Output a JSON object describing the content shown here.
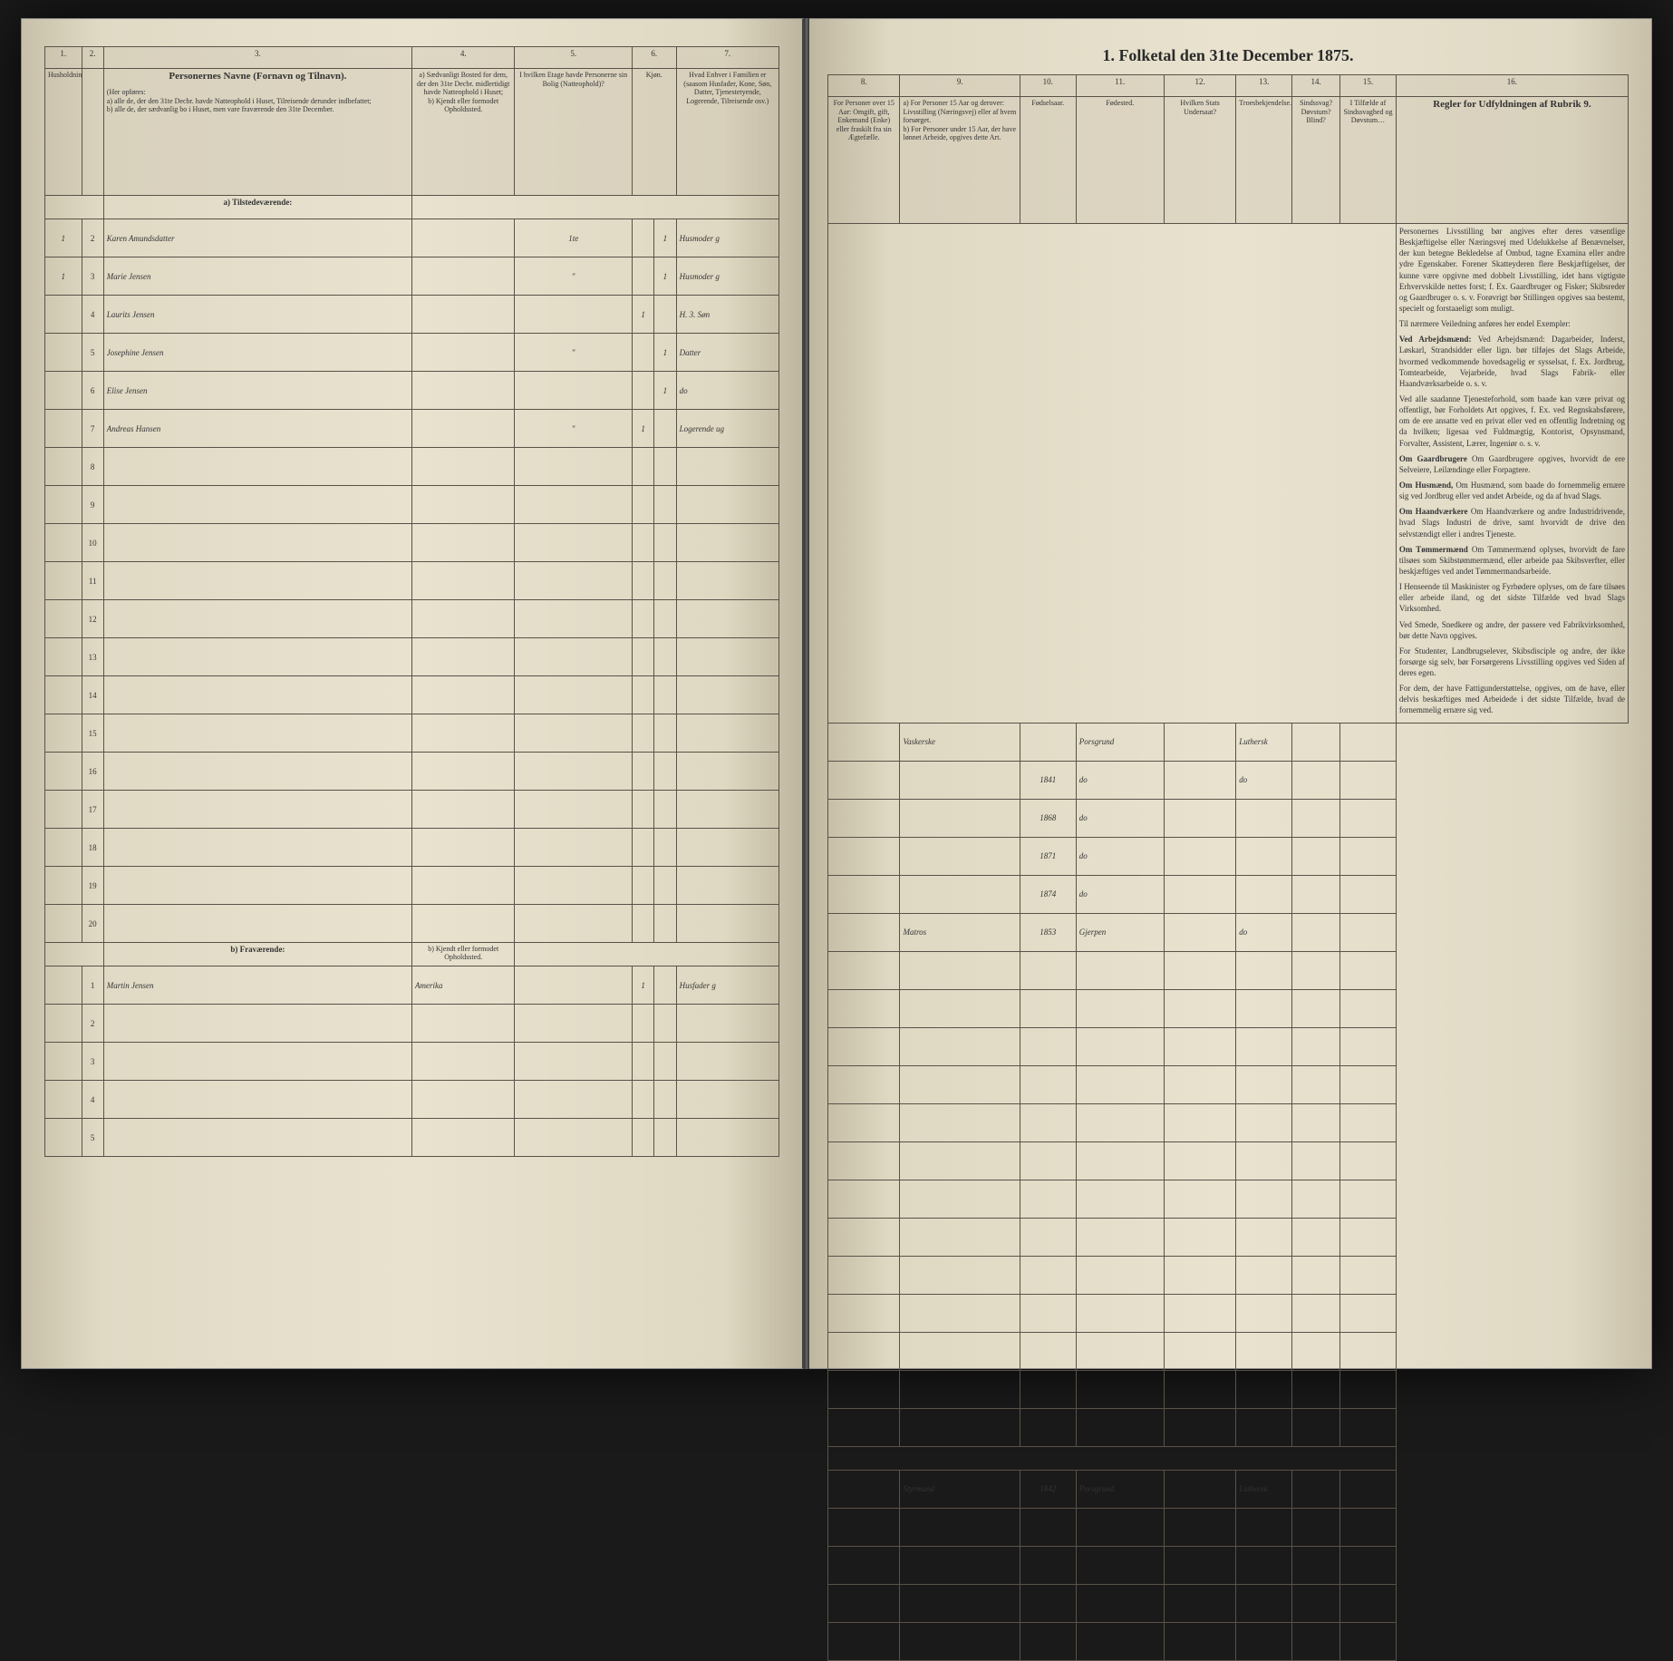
{
  "document": {
    "title": "1. Folketal den 31te December 1875.",
    "background_tint": "#e8e2cf",
    "ink_color": "#2a2418",
    "rule_color": "#5a5248"
  },
  "left_columns": {
    "c1": {
      "num": "1.",
      "label": "Husholdninger."
    },
    "c2": {
      "num": "2.",
      "label": ""
    },
    "c3": {
      "num": "3.",
      "label": "Personernes Navne (Fornavn og Tilnavn).",
      "sub": "(Her opføres:\na) alle de, der den 31te Decbr. havde Natteophold i Huset, Tilreisende derunder indbefattet;\nb) alle de, der sædvanlig bo i Huset, men vare fraværende den 31te December."
    },
    "c4": {
      "num": "4.",
      "label": "a) Sædvanligt Bosted for dem, der den 31te Decbr. midlertidigt havde Natteophold i Huset;\nb) Kjendt eller formodet Opholdssted."
    },
    "c5": {
      "num": "5.",
      "label": "I hvilken Etage havde Personerne sin Bolig (Natteophold)?"
    },
    "c6": {
      "num": "6.",
      "label": "Kjøn."
    },
    "c7": {
      "num": "7.",
      "label": "Hvad Enhver i Familien er (saasom Husfader, Kone, Søn, Datter, Tjenestetyende, Logerende, Tilreisende osv.)"
    }
  },
  "right_columns": {
    "c8": {
      "num": "8.",
      "label": "For Personer over 15 Aar: Omgift, gift, Enkemand (Enke) eller fraskilt fra sin Ægtefælle."
    },
    "c9": {
      "num": "9.",
      "label": "a) For Personer 15 Aar og derover: Livsstilling (Næringsvej) eller af hvem forsørget.\nb) For Personer under 15 Aar, der have lønnet Arbeide, opgives dette Art."
    },
    "c10": {
      "num": "10.",
      "label": "Fødselsaar."
    },
    "c11": {
      "num": "11.",
      "label": "Fødested."
    },
    "c12": {
      "num": "12.",
      "label": "Hvilken Stats Undersaat?"
    },
    "c13": {
      "num": "13.",
      "label": "Troesbekjendelse."
    },
    "c14": {
      "num": "14.",
      "label": "Sindssvag? Døvstum? Blind?"
    },
    "c15": {
      "num": "15.",
      "label": "I Tilfælde af Sindssvaghed og Døvstum…"
    },
    "c16": {
      "num": "16.",
      "label": "Regler for Udfyldningen af Rubrik 9."
    }
  },
  "sections": {
    "present": "a) Tilstedeværende:",
    "absent": "b) Fraværende:"
  },
  "rows_present": [
    {
      "n": "1",
      "h": "2",
      "name": "Karen Amundsdatter",
      "c4": "",
      "c5": "1te",
      "c6": "",
      "c6b": "1",
      "c7": "Husmoder g",
      "c8": "",
      "c9": "Vaskerske",
      "c10": "",
      "c11": "Porsgrund",
      "c12": "",
      "c13": "Luthersk",
      "c14": "",
      "c15": ""
    },
    {
      "n": "1",
      "h": "3",
      "name": "Marie Jensen",
      "c4": "",
      "c5": "\"",
      "c6": "",
      "c6b": "1",
      "c7": "Husmoder g",
      "c8": "",
      "c9": "",
      "c10": "1841",
      "c11": "do",
      "c12": "",
      "c13": "do",
      "c14": "",
      "c15": ""
    },
    {
      "n": "",
      "h": "4",
      "name": "Laurits Jensen",
      "c4": "",
      "c5": "",
      "c6": "1",
      "c6b": "",
      "c7": "H. 3. Søn",
      "c8": "",
      "c9": "",
      "c10": "1868",
      "c11": "do",
      "c12": "",
      "c13": "",
      "c14": "",
      "c15": ""
    },
    {
      "n": "",
      "h": "5",
      "name": "Josephine Jensen",
      "c4": "",
      "c5": "\"",
      "c6": "",
      "c6b": "1",
      "c7": "Datter",
      "c8": "",
      "c9": "",
      "c10": "1871",
      "c11": "do",
      "c12": "",
      "c13": "",
      "c14": "",
      "c15": ""
    },
    {
      "n": "",
      "h": "6",
      "name": "Elise Jensen",
      "c4": "",
      "c5": "",
      "c6": "",
      "c6b": "1",
      "c7": "do",
      "c8": "",
      "c9": "",
      "c10": "1874",
      "c11": "do",
      "c12": "",
      "c13": "",
      "c14": "",
      "c15": ""
    },
    {
      "n": "",
      "h": "7",
      "name": "Andreas Hansen",
      "c4": "",
      "c5": "\"",
      "c6": "1",
      "c6b": "",
      "c7": "Logerende ug",
      "c8": "",
      "c9": "Matros",
      "c10": "1853",
      "c11": "Gjerpen",
      "c12": "",
      "c13": "do",
      "c14": "",
      "c15": ""
    },
    {
      "n": "",
      "h": "8",
      "name": "",
      "c4": "",
      "c5": "",
      "c6": "",
      "c6b": "",
      "c7": "",
      "c8": "",
      "c9": "",
      "c10": "",
      "c11": "",
      "c12": "",
      "c13": "",
      "c14": "",
      "c15": ""
    },
    {
      "n": "",
      "h": "9",
      "name": "",
      "c4": "",
      "c5": "",
      "c6": "",
      "c6b": "",
      "c7": "",
      "c8": "",
      "c9": "",
      "c10": "",
      "c11": "",
      "c12": "",
      "c13": "",
      "c14": "",
      "c15": ""
    },
    {
      "n": "",
      "h": "10",
      "name": "",
      "c4": "",
      "c5": "",
      "c6": "",
      "c6b": "",
      "c7": "",
      "c8": "",
      "c9": "",
      "c10": "",
      "c11": "",
      "c12": "",
      "c13": "",
      "c14": "",
      "c15": ""
    },
    {
      "n": "",
      "h": "11",
      "name": "",
      "c4": "",
      "c5": "",
      "c6": "",
      "c6b": "",
      "c7": "",
      "c8": "",
      "c9": "",
      "c10": "",
      "c11": "",
      "c12": "",
      "c13": "",
      "c14": "",
      "c15": ""
    },
    {
      "n": "",
      "h": "12",
      "name": "",
      "c4": "",
      "c5": "",
      "c6": "",
      "c6b": "",
      "c7": "",
      "c8": "",
      "c9": "",
      "c10": "",
      "c11": "",
      "c12": "",
      "c13": "",
      "c14": "",
      "c15": ""
    },
    {
      "n": "",
      "h": "13",
      "name": "",
      "c4": "",
      "c5": "",
      "c6": "",
      "c6b": "",
      "c7": "",
      "c8": "",
      "c9": "",
      "c10": "",
      "c11": "",
      "c12": "",
      "c13": "",
      "c14": "",
      "c15": ""
    },
    {
      "n": "",
      "h": "14",
      "name": "",
      "c4": "",
      "c5": "",
      "c6": "",
      "c6b": "",
      "c7": "",
      "c8": "",
      "c9": "",
      "c10": "",
      "c11": "",
      "c12": "",
      "c13": "",
      "c14": "",
      "c15": ""
    },
    {
      "n": "",
      "h": "15",
      "name": "",
      "c4": "",
      "c5": "",
      "c6": "",
      "c6b": "",
      "c7": "",
      "c8": "",
      "c9": "",
      "c10": "",
      "c11": "",
      "c12": "",
      "c13": "",
      "c14": "",
      "c15": ""
    },
    {
      "n": "",
      "h": "16",
      "name": "",
      "c4": "",
      "c5": "",
      "c6": "",
      "c6b": "",
      "c7": "",
      "c8": "",
      "c9": "",
      "c10": "",
      "c11": "",
      "c12": "",
      "c13": "",
      "c14": "",
      "c15": ""
    },
    {
      "n": "",
      "h": "17",
      "name": "",
      "c4": "",
      "c5": "",
      "c6": "",
      "c6b": "",
      "c7": "",
      "c8": "",
      "c9": "",
      "c10": "",
      "c11": "",
      "c12": "",
      "c13": "",
      "c14": "",
      "c15": ""
    },
    {
      "n": "",
      "h": "18",
      "name": "",
      "c4": "",
      "c5": "",
      "c6": "",
      "c6b": "",
      "c7": "",
      "c8": "",
      "c9": "",
      "c10": "",
      "c11": "",
      "c12": "",
      "c13": "",
      "c14": "",
      "c15": ""
    },
    {
      "n": "",
      "h": "19",
      "name": "",
      "c4": "",
      "c5": "",
      "c6": "",
      "c6b": "",
      "c7": "",
      "c8": "",
      "c9": "",
      "c10": "",
      "c11": "",
      "c12": "",
      "c13": "",
      "c14": "",
      "c15": ""
    },
    {
      "n": "",
      "h": "20",
      "name": "",
      "c4": "",
      "c5": "",
      "c6": "",
      "c6b": "",
      "c7": "",
      "c8": "",
      "c9": "",
      "c10": "",
      "c11": "",
      "c12": "",
      "c13": "",
      "c14": "",
      "c15": ""
    }
  ],
  "rows_absent": [
    {
      "n": "",
      "h": "1",
      "name": "Martin Jensen",
      "c4": "Amerika",
      "c5": "",
      "c6": "1",
      "c6b": "",
      "c7": "Husfader g",
      "c8": "",
      "c9": "Styrmand",
      "c10": "1842",
      "c11": "Porsgrund",
      "c12": "",
      "c13": "Luthersk",
      "c14": "",
      "c15": ""
    },
    {
      "n": "",
      "h": "2",
      "name": "",
      "c4": "",
      "c5": "",
      "c6": "",
      "c6b": "",
      "c7": "",
      "c8": "",
      "c9": "",
      "c10": "",
      "c11": "",
      "c12": "",
      "c13": "",
      "c14": "",
      "c15": ""
    },
    {
      "n": "",
      "h": "3",
      "name": "",
      "c4": "",
      "c5": "",
      "c6": "",
      "c6b": "",
      "c7": "",
      "c8": "",
      "c9": "",
      "c10": "",
      "c11": "",
      "c12": "",
      "c13": "",
      "c14": "",
      "c15": ""
    },
    {
      "n": "",
      "h": "4",
      "name": "",
      "c4": "",
      "c5": "",
      "c6": "",
      "c6b": "",
      "c7": "",
      "c8": "",
      "c9": "",
      "c10": "",
      "c11": "",
      "c12": "",
      "c13": "",
      "c14": "",
      "c15": ""
    },
    {
      "n": "",
      "h": "5",
      "name": "",
      "c4": "",
      "c5": "",
      "c6": "",
      "c6b": "",
      "c7": "",
      "c8": "",
      "c9": "",
      "c10": "",
      "c11": "",
      "c12": "",
      "c13": "",
      "c14": "",
      "c15": ""
    }
  ],
  "instructions": {
    "para1": "Personernes Livsstilling bør angives efter deres væsentlige Beskjæftigelse eller Næringsvej med Udelukkelse af Benævnelser, der kun betegne Bekledelse af Ombud, tagne Examina eller andre ydre Egenskaber. Forener Skatteyderen flere Beskjæftigelser, der kunne være opgivne med dobbelt Livsstilling, idet hans vigtigste Erhvervskilde nettes forst; f. Ex. Gaardbruger og Fisker; Skibsreder og Gaardbruger o. s. v. Forøvrigt bør Stillingen opgives saa bestemt, specielt og forstaaeligt som muligt.",
    "para2": "Til nærmere Veiledning anføres her endel Exempler:",
    "para3": "Ved Arbejdsmænd: Dagarbeider, Inderst, Løskarl, Strandsidder eller lign. bør tilføjes det Slags Arbeide, hvormed vedkommende hovedsagelig er sysselsat, f. Ex. Jordbrug, Tomtearbeide, Vejarbeide, hvad Slags Fabrik- eller Haandværksarbeide o. s. v.",
    "para4": "Ved alle saadanne Tjenesteforhold, som baade kan være privat og offentligt, bør Forholdets Art opgives, f. Ex. ved Regnskabsførere, om de ere ansatte ved en privat eller ved en offentlig Indretning og da hvilken; ligesaa ved Fuldmægtig, Kontorist, Opsynsmand, Forvalter, Assistent, Lærer, Ingeniør o. s. v.",
    "para5": "Om Gaardbrugere opgives, hvorvidt de ere Selveiere, Leilændinge eller Forpagtere.",
    "para6": "Om Husmænd, som baade do fornemmelig ernære sig ved Jordbrug eller ved andet Arbeide, og da af hvad Slags.",
    "para7": "Om Haandværkere og andre Industridrivende, hvad Slags Industri de drive, samt hvorvidt de drive den selvstændigt eller i andres Tjeneste.",
    "para8": "Om Tømmermænd oplyses, hvorvidt de fare tilsøes som Skibstømmermænd, eller arbeide paa Skibsverfter, eller beskjæftiges ved andet Tømmermandsarbeide.",
    "para9": "I Henseende til Maskinister og Fyrbødere oplyses, om de fare tilsøes eller arbeide iland, og det sidste Tilfælde ved hvad Slags Virksomhed.",
    "para10": "Ved Smede, Snedkere og andre, der passere ved Fabrikvirksomhed, bør dette Navn opgives.",
    "para11": "For Studenter, Landbrugselever, Skibsdisciple og andre, der ikke forsørge sig selv, bør Forsørgerens Livsstilling opgives ved Siden af deres egen.",
    "para12": "For dem, der have Fattigunderstøttelse, opgives, om de have, eller delvis beskæftiges med Arbeidede i det sidste Tilfælde, hvad de fornemmelig ernære sig ved."
  },
  "absent_note": "b) Kjendt eller formodet Opholdssted."
}
